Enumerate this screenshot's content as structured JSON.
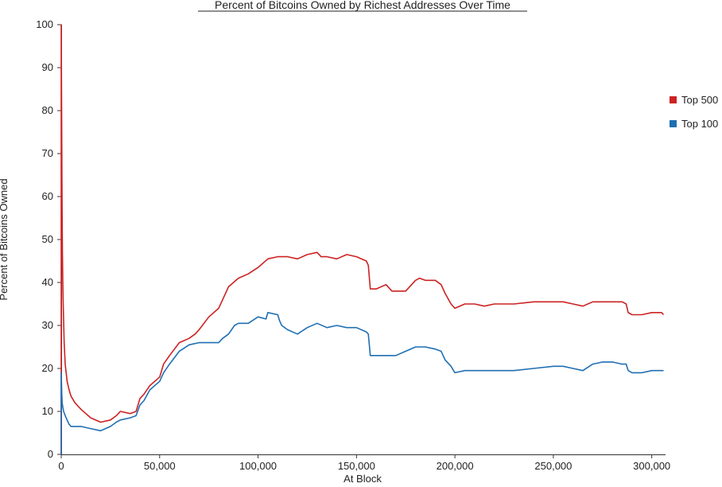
{
  "chart_data": {
    "type": "line",
    "title": "Percent of Bitcoins Owned by Richest Addresses Over Time",
    "xlabel": "At Block",
    "ylabel": "Percent of Bitcoins Owned",
    "xlim": [
      0,
      307000
    ],
    "ylim": [
      0,
      100
    ],
    "x_ticks": [
      0,
      50000,
      100000,
      150000,
      200000,
      250000,
      300000
    ],
    "x_tick_labels": [
      "0",
      "50,000",
      "100,000",
      "150,000",
      "200,000",
      "250,000",
      "300,000"
    ],
    "y_ticks": [
      0,
      10,
      20,
      30,
      40,
      50,
      60,
      70,
      80,
      90,
      100
    ],
    "y_tick_labels": [
      "0",
      "10",
      "20",
      "30",
      "40",
      "50",
      "60",
      "70",
      "80",
      "90",
      "100"
    ],
    "grid": false,
    "legend": "right",
    "series": [
      {
        "name": "Top 500",
        "color": "#cc2222",
        "x": [
          0,
          0,
          200,
          400,
          600,
          800,
          1000,
          1500,
          2000,
          3000,
          4000,
          5000,
          7000,
          10000,
          15000,
          20000,
          25000,
          28000,
          30000,
          35000,
          38000,
          40000,
          42000,
          45000,
          50000,
          52000,
          55000,
          60000,
          65000,
          68000,
          70000,
          75000,
          80000,
          82000,
          85000,
          90000,
          95000,
          100000,
          105000,
          110000,
          115000,
          120000,
          125000,
          130000,
          132000,
          135000,
          140000,
          145000,
          150000,
          155000,
          156000,
          157000,
          160000,
          165000,
          168000,
          170000,
          175000,
          180000,
          182000,
          185000,
          190000,
          193000,
          195000,
          198000,
          200000,
          205000,
          210000,
          215000,
          220000,
          230000,
          240000,
          250000,
          255000,
          260000,
          265000,
          270000,
          275000,
          280000,
          285000,
          287000,
          288000,
          290000,
          295000,
          300000,
          305000,
          306000
        ],
        "y": [
          0,
          100,
          80,
          60,
          47,
          40,
          35,
          26,
          21,
          17,
          15,
          13.5,
          12,
          10.5,
          8.5,
          7.5,
          8,
          9,
          10,
          9.5,
          10,
          13,
          14,
          16,
          18,
          21,
          23,
          26,
          27,
          28,
          29,
          32,
          34,
          36,
          39,
          41,
          42,
          43.5,
          45.5,
          46,
          46,
          45.5,
          46.5,
          47,
          46,
          46,
          45.5,
          46.5,
          46,
          45,
          44,
          38.5,
          38.5,
          39.5,
          38,
          38,
          38,
          40.5,
          41,
          40.5,
          40.5,
          39.5,
          37.5,
          35,
          34,
          35,
          35,
          34.5,
          35,
          35,
          35.5,
          35.5,
          35.5,
          35,
          34.5,
          35.5,
          35.5,
          35.5,
          35.5,
          35,
          33,
          32.5,
          32.5,
          33,
          33,
          32.5
        ]
      },
      {
        "name": "Top 100",
        "color": "#1f6fb2",
        "x": [
          0,
          0,
          300,
          500,
          800,
          1200,
          2000,
          3000,
          4000,
          5000,
          7000,
          10000,
          15000,
          20000,
          25000,
          28000,
          30000,
          35000,
          38000,
          40000,
          42000,
          45000,
          50000,
          52000,
          55000,
          60000,
          65000,
          70000,
          75000,
          80000,
          82000,
          85000,
          88000,
          90000,
          95000,
          100000,
          104000,
          105000,
          110000,
          111000,
          112000,
          115000,
          120000,
          125000,
          130000,
          135000,
          140000,
          145000,
          150000,
          155000,
          156000,
          157000,
          160000,
          165000,
          170000,
          175000,
          180000,
          185000,
          190000,
          193000,
          195000,
          198000,
          200000,
          205000,
          210000,
          215000,
          220000,
          230000,
          240000,
          250000,
          255000,
          260000,
          265000,
          270000,
          275000,
          280000,
          285000,
          287000,
          288000,
          290000,
          295000,
          300000,
          305000,
          306000
        ],
        "y": [
          0,
          19,
          14,
          12,
          11,
          10,
          9,
          8,
          7,
          6.5,
          6.5,
          6.5,
          6,
          5.5,
          6.5,
          7.5,
          8,
          8.5,
          9,
          11.5,
          12.5,
          15,
          17,
          19,
          21,
          24,
          25.5,
          26,
          26,
          26,
          27,
          28,
          30,
          30.5,
          30.5,
          32,
          31.5,
          33,
          32.5,
          31,
          30,
          29,
          28,
          29.5,
          30.5,
          29.5,
          30,
          29.5,
          29.5,
          28.5,
          28,
          23,
          23,
          23,
          23,
          24,
          25,
          25,
          24.5,
          24,
          22,
          20.5,
          19,
          19.5,
          19.5,
          19.5,
          19.5,
          19.5,
          20,
          20.5,
          20.5,
          20,
          19.5,
          21,
          21.5,
          21.5,
          21,
          21,
          19.5,
          19,
          19,
          19.5,
          19.5,
          19.5
        ]
      }
    ]
  }
}
